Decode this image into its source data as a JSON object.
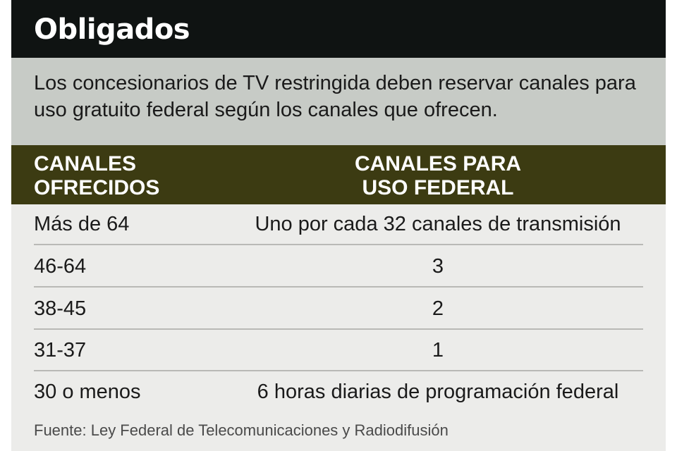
{
  "title": "Obligados",
  "intro": "Los concesionarios de TV restringida deben reservar canales para uso gratuito federal según los canales que ofrecen.",
  "table": {
    "headers": [
      "CANALES\nOFRECIDOS",
      "CANALES PARA\nUSO FEDERAL"
    ],
    "rows": [
      [
        "Más de 64",
        "Uno por cada 32 canales de transmisión"
      ],
      [
        "46-64",
        "3"
      ],
      [
        "38-45",
        "2"
      ],
      [
        "31-37",
        "1"
      ],
      [
        "30 o menos",
        "6 horas diarias de programación federal"
      ]
    ]
  },
  "source": "Fuente: Ley Federal de Telecomunicaciones y Radiodifusión",
  "colors": {
    "title_bar": "#0f1312",
    "intro_box": "#c7cbc6",
    "header_bar": "#3c3b12",
    "background": "#ececea"
  }
}
